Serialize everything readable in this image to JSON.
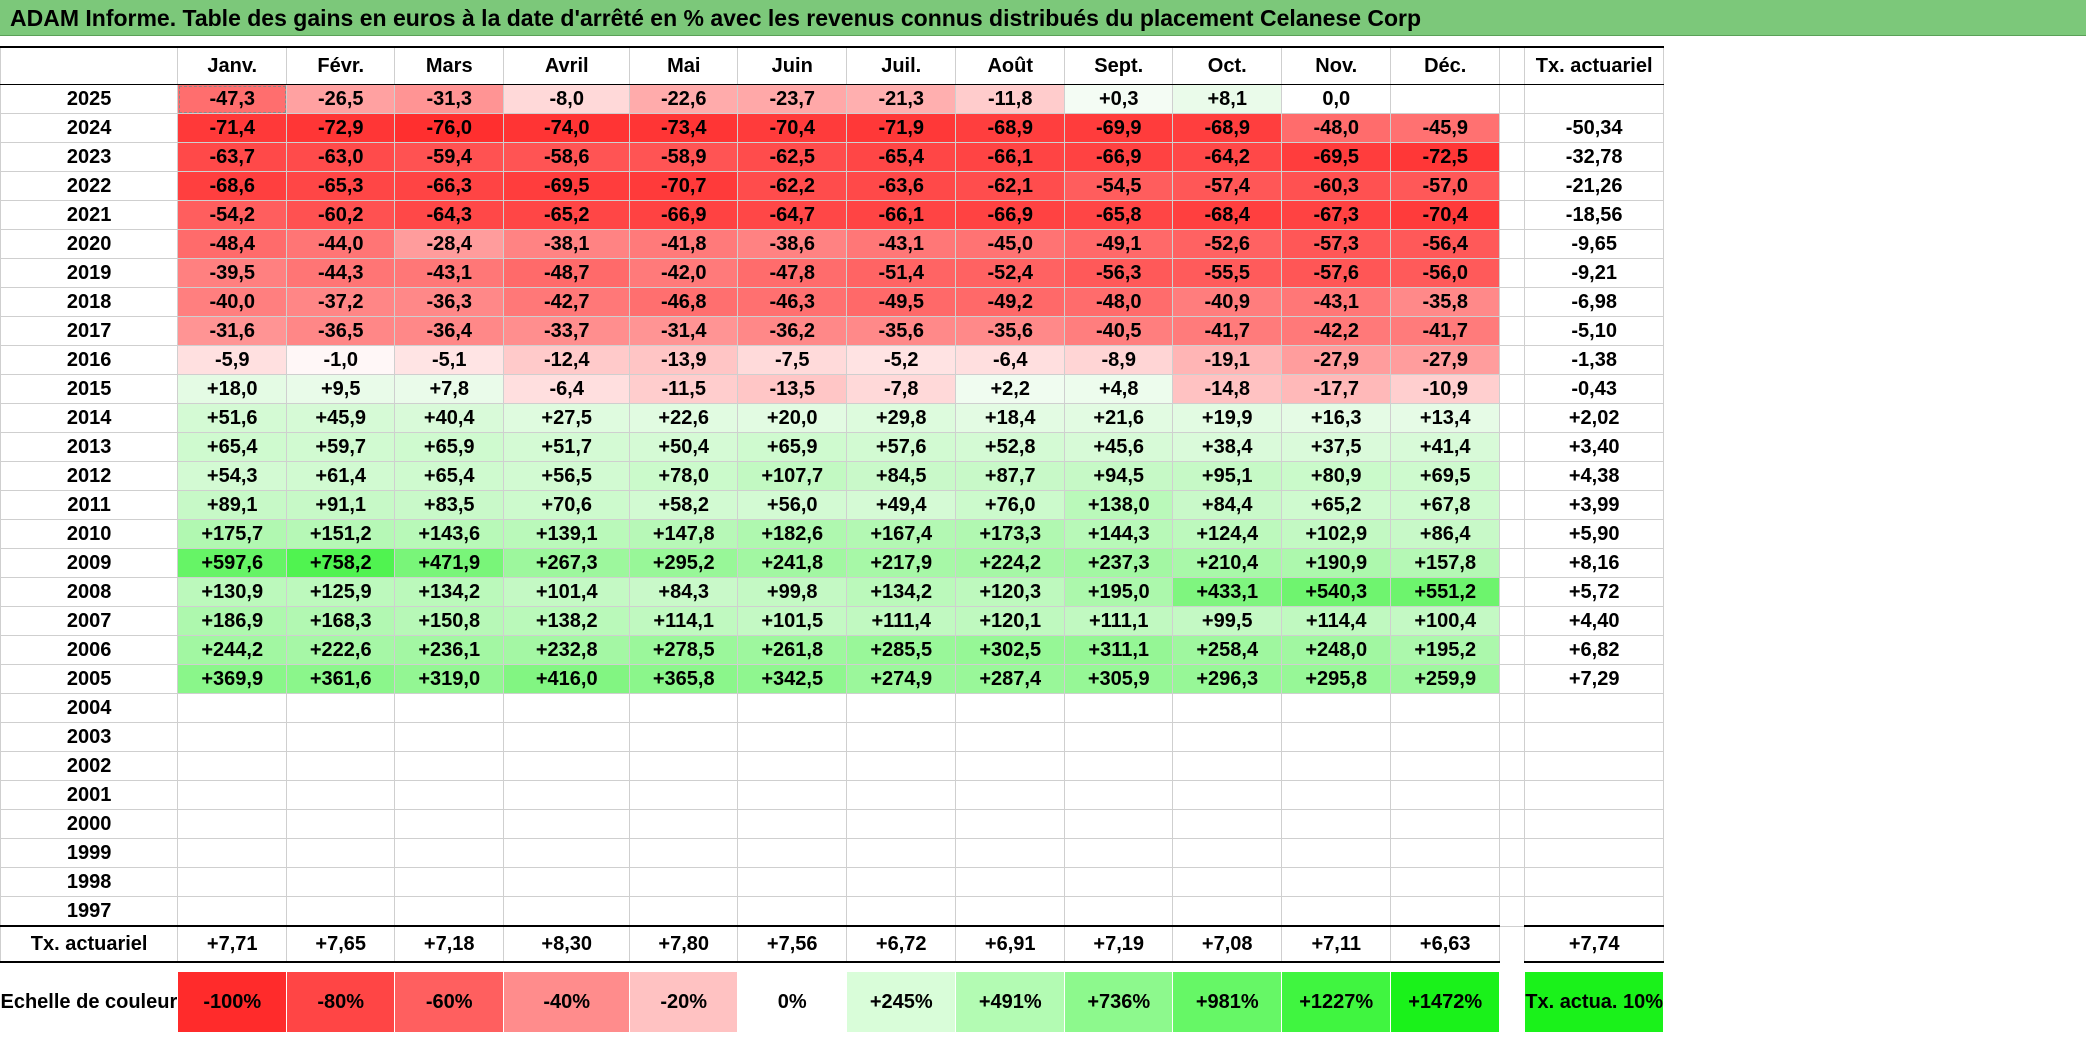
{
  "title": "ADAM Informe. Table des gains en euros à la date d'arrêté en % avec les revenus connus distribués du placement Celanese Corp",
  "chart_data": {
    "type": "table",
    "months": [
      "Janv.",
      "Févr.",
      "Mars",
      "Avril",
      "Mai",
      "Juin",
      "Juil.",
      "Août",
      "Sept.",
      "Oct.",
      "Nov.",
      "Déc."
    ],
    "tx_header": "Tx. actuariel",
    "rows": [
      {
        "year": "2025",
        "values": [
          "-47,3",
          "-26,5",
          "-31,3",
          "-8,0",
          "-22,6",
          "-23,7",
          "-21,3",
          "-11,8",
          "+0,3",
          "+8,1",
          "0,0",
          ""
        ],
        "tx": ""
      },
      {
        "year": "2024",
        "values": [
          "-71,4",
          "-72,9",
          "-76,0",
          "-74,0",
          "-73,4",
          "-70,4",
          "-71,9",
          "-68,9",
          "-69,9",
          "-68,9",
          "-48,0",
          "-45,9"
        ],
        "tx": "-50,34"
      },
      {
        "year": "2023",
        "values": [
          "-63,7",
          "-63,0",
          "-59,4",
          "-58,6",
          "-58,9",
          "-62,5",
          "-65,4",
          "-66,1",
          "-66,9",
          "-64,2",
          "-69,5",
          "-72,5"
        ],
        "tx": "-32,78"
      },
      {
        "year": "2022",
        "values": [
          "-68,6",
          "-65,3",
          "-66,3",
          "-69,5",
          "-70,7",
          "-62,2",
          "-63,6",
          "-62,1",
          "-54,5",
          "-57,4",
          "-60,3",
          "-57,0"
        ],
        "tx": "-21,26"
      },
      {
        "year": "2021",
        "values": [
          "-54,2",
          "-60,2",
          "-64,3",
          "-65,2",
          "-66,9",
          "-64,7",
          "-66,1",
          "-66,9",
          "-65,8",
          "-68,4",
          "-67,3",
          "-70,4"
        ],
        "tx": "-18,56"
      },
      {
        "year": "2020",
        "values": [
          "-48,4",
          "-44,0",
          "-28,4",
          "-38,1",
          "-41,8",
          "-38,6",
          "-43,1",
          "-45,0",
          "-49,1",
          "-52,6",
          "-57,3",
          "-56,4"
        ],
        "tx": "-9,65"
      },
      {
        "year": "2019",
        "values": [
          "-39,5",
          "-44,3",
          "-43,1",
          "-48,7",
          "-42,0",
          "-47,8",
          "-51,4",
          "-52,4",
          "-56,3",
          "-55,5",
          "-57,6",
          "-56,0"
        ],
        "tx": "-9,21"
      },
      {
        "year": "2018",
        "values": [
          "-40,0",
          "-37,2",
          "-36,3",
          "-42,7",
          "-46,8",
          "-46,3",
          "-49,5",
          "-49,2",
          "-48,0",
          "-40,9",
          "-43,1",
          "-35,8"
        ],
        "tx": "-6,98"
      },
      {
        "year": "2017",
        "values": [
          "-31,6",
          "-36,5",
          "-36,4",
          "-33,7",
          "-31,4",
          "-36,2",
          "-35,6",
          "-35,6",
          "-40,5",
          "-41,7",
          "-42,2",
          "-41,7"
        ],
        "tx": "-5,10"
      },
      {
        "year": "2016",
        "values": [
          "-5,9",
          "-1,0",
          "-5,1",
          "-12,4",
          "-13,9",
          "-7,5",
          "-5,2",
          "-6,4",
          "-8,9",
          "-19,1",
          "-27,9",
          "-27,9"
        ],
        "tx": "-1,38"
      },
      {
        "year": "2015",
        "values": [
          "+18,0",
          "+9,5",
          "+7,8",
          "-6,4",
          "-11,5",
          "-13,5",
          "-7,8",
          "+2,2",
          "+4,8",
          "-14,8",
          "-17,7",
          "-10,9"
        ],
        "tx": "-0,43"
      },
      {
        "year": "2014",
        "values": [
          "+51,6",
          "+45,9",
          "+40,4",
          "+27,5",
          "+22,6",
          "+20,0",
          "+29,8",
          "+18,4",
          "+21,6",
          "+19,9",
          "+16,3",
          "+13,4"
        ],
        "tx": "+2,02"
      },
      {
        "year": "2013",
        "values": [
          "+65,4",
          "+59,7",
          "+65,9",
          "+51,7",
          "+50,4",
          "+65,9",
          "+57,6",
          "+52,8",
          "+45,6",
          "+38,4",
          "+37,5",
          "+41,4"
        ],
        "tx": "+3,40"
      },
      {
        "year": "2012",
        "values": [
          "+54,3",
          "+61,4",
          "+65,4",
          "+56,5",
          "+78,0",
          "+107,7",
          "+84,5",
          "+87,7",
          "+94,5",
          "+95,1",
          "+80,9",
          "+69,5"
        ],
        "tx": "+4,38"
      },
      {
        "year": "2011",
        "values": [
          "+89,1",
          "+91,1",
          "+83,5",
          "+70,6",
          "+58,2",
          "+56,0",
          "+49,4",
          "+76,0",
          "+138,0",
          "+84,4",
          "+65,2",
          "+67,8"
        ],
        "tx": "+3,99"
      },
      {
        "year": "2010",
        "values": [
          "+175,7",
          "+151,2",
          "+143,6",
          "+139,1",
          "+147,8",
          "+182,6",
          "+167,4",
          "+173,3",
          "+144,3",
          "+124,4",
          "+102,9",
          "+86,4"
        ],
        "tx": "+5,90"
      },
      {
        "year": "2009",
        "values": [
          "+597,6",
          "+758,2",
          "+471,9",
          "+267,3",
          "+295,2",
          "+241,8",
          "+217,9",
          "+224,2",
          "+237,3",
          "+210,4",
          "+190,9",
          "+157,8"
        ],
        "tx": "+8,16"
      },
      {
        "year": "2008",
        "values": [
          "+130,9",
          "+125,9",
          "+134,2",
          "+101,4",
          "+84,3",
          "+99,8",
          "+134,2",
          "+120,3",
          "+195,0",
          "+433,1",
          "+540,3",
          "+551,2"
        ],
        "tx": "+5,72"
      },
      {
        "year": "2007",
        "values": [
          "+186,9",
          "+168,3",
          "+150,8",
          "+138,2",
          "+114,1",
          "+101,5",
          "+111,4",
          "+120,1",
          "+111,1",
          "+99,5",
          "+114,4",
          "+100,4"
        ],
        "tx": "+4,40"
      },
      {
        "year": "2006",
        "values": [
          "+244,2",
          "+222,6",
          "+236,1",
          "+232,8",
          "+278,5",
          "+261,8",
          "+285,5",
          "+302,5",
          "+311,1",
          "+258,4",
          "+248,0",
          "+195,2"
        ],
        "tx": "+6,82"
      },
      {
        "year": "2005",
        "values": [
          "+369,9",
          "+361,6",
          "+319,0",
          "+416,0",
          "+365,8",
          "+342,5",
          "+274,9",
          "+287,4",
          "+305,9",
          "+296,3",
          "+295,8",
          "+259,9"
        ],
        "tx": "+7,29"
      },
      {
        "year": "2004",
        "values": [
          "",
          "",
          "",
          "",
          "",
          "",
          "",
          "",
          "",
          "",
          "",
          ""
        ],
        "tx": ""
      },
      {
        "year": "2003",
        "values": [
          "",
          "",
          "",
          "",
          "",
          "",
          "",
          "",
          "",
          "",
          "",
          ""
        ],
        "tx": ""
      },
      {
        "year": "2002",
        "values": [
          "",
          "",
          "",
          "",
          "",
          "",
          "",
          "",
          "",
          "",
          "",
          ""
        ],
        "tx": ""
      },
      {
        "year": "2001",
        "values": [
          "",
          "",
          "",
          "",
          "",
          "",
          "",
          "",
          "",
          "",
          "",
          ""
        ],
        "tx": ""
      },
      {
        "year": "2000",
        "values": [
          "",
          "",
          "",
          "",
          "",
          "",
          "",
          "",
          "",
          "",
          "",
          ""
        ],
        "tx": ""
      },
      {
        "year": "1999",
        "values": [
          "",
          "",
          "",
          "",
          "",
          "",
          "",
          "",
          "",
          "",
          "",
          ""
        ],
        "tx": ""
      },
      {
        "year": "1998",
        "values": [
          "",
          "",
          "",
          "",
          "",
          "",
          "",
          "",
          "",
          "",
          "",
          ""
        ],
        "tx": ""
      },
      {
        "year": "1997",
        "values": [
          "",
          "",
          "",
          "",
          "",
          "",
          "",
          "",
          "",
          "",
          "",
          ""
        ],
        "tx": ""
      }
    ],
    "footer": {
      "label": "Tx. actuariel",
      "values": [
        "+7,71",
        "+7,65",
        "+7,18",
        "+8,30",
        "+7,80",
        "+7,56",
        "+6,72",
        "+6,91",
        "+7,19",
        "+7,08",
        "+7,11",
        "+6,63"
      ],
      "tx": "+7,74"
    },
    "legend": {
      "label": "Echelle de couleur",
      "steps": [
        "-100%",
        "-80%",
        "-60%",
        "-40%",
        "-20%",
        "0%",
        "+245%",
        "+491%",
        "+736%",
        "+981%",
        "+1227%",
        "+1472%"
      ],
      "step_colors": [
        "#ff2b2b",
        "#ff4545",
        "#ff5f5f",
        "#ff8c8c",
        "#ffc2c2",
        "#ffffff",
        "#d9fdd9",
        "#b3fbb3",
        "#8df98d",
        "#66f766",
        "#40f540",
        "#1af21a"
      ],
      "tx_label": "Tx. actua. 10%",
      "tx_color": "#1af21a"
    },
    "colors": {
      "title_bar": "#7cc87a",
      "neg_max": "#ff0000",
      "pos_max": "#00ee00",
      "neg_scale_min": -100,
      "pos_scale_max": 1472
    }
  }
}
